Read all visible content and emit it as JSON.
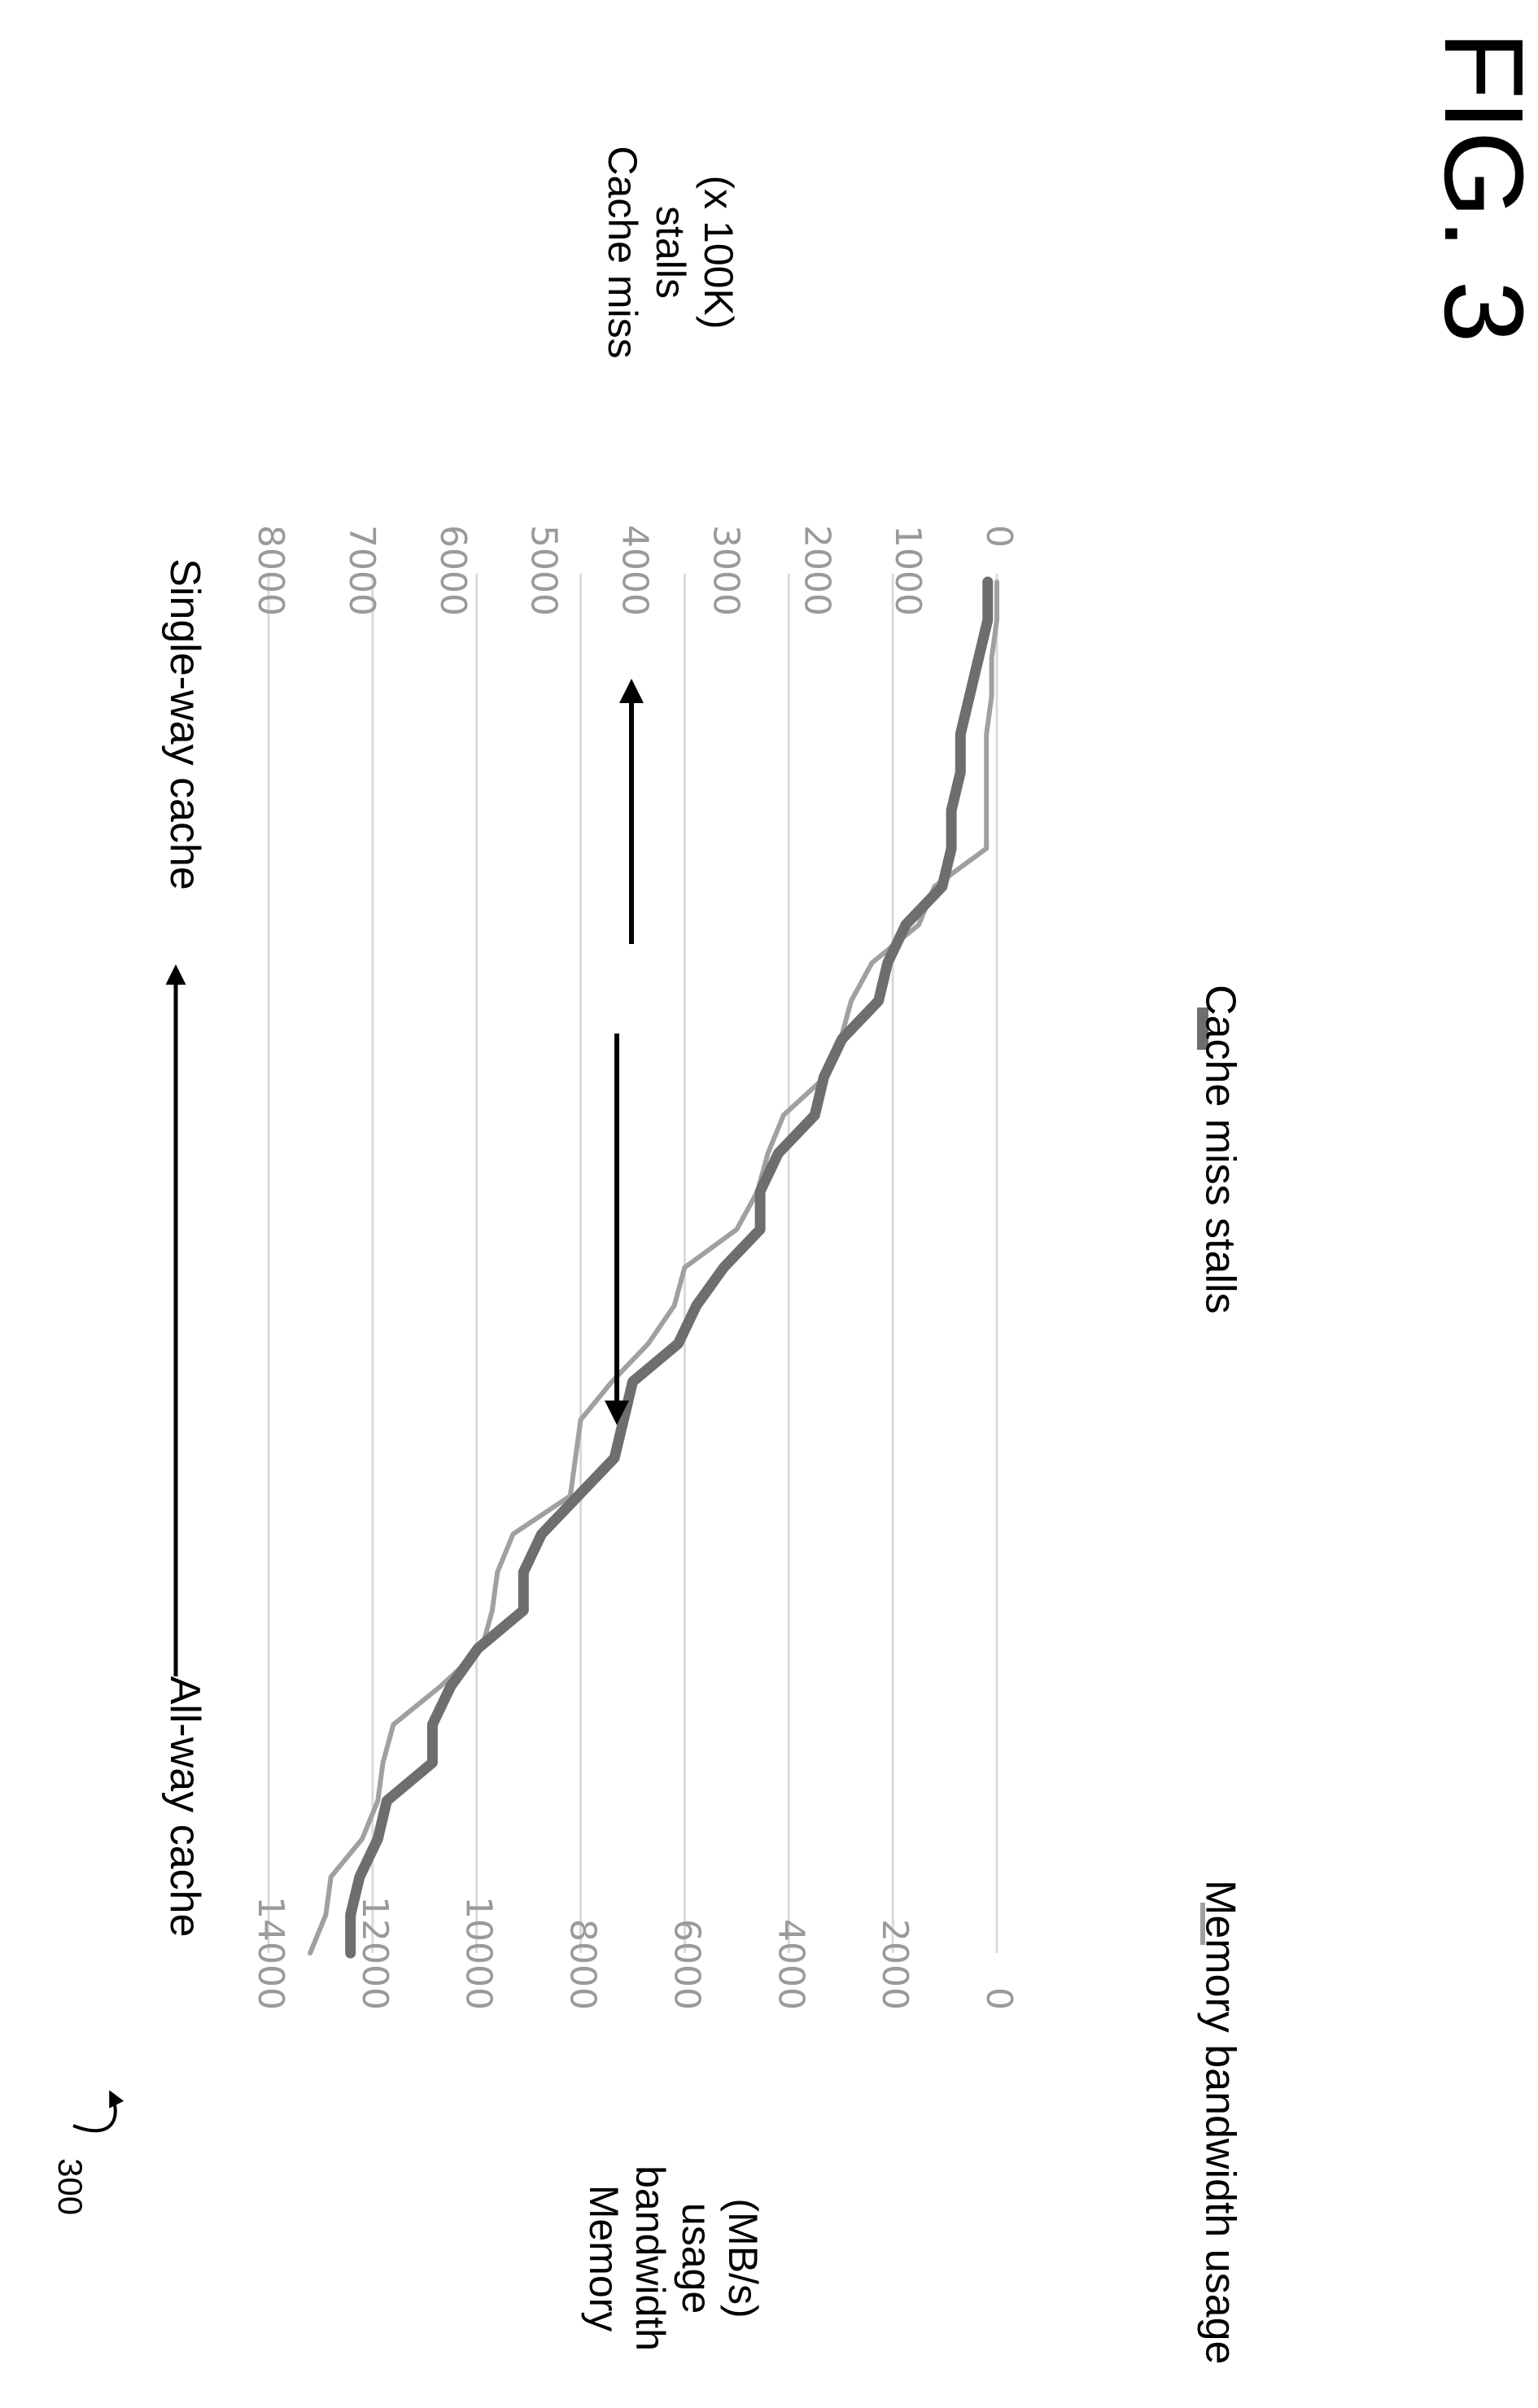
{
  "figure": {
    "ref_number": "300",
    "fig_label": "FIG. 3"
  },
  "annotations": {
    "left_end": "All-way cache",
    "right_end": "Single-way cache"
  },
  "chart_data": {
    "type": "line",
    "orientation": "rotated 90° clockwise (x runs top to bottom of page)",
    "grid": true,
    "legend_position": "bottom",
    "primary_axis": {
      "label": [
        "Memory",
        "bandwidth",
        "usage",
        "(MB/s)"
      ],
      "ylim": [
        0,
        14000
      ],
      "ticks": [
        "0",
        "2000",
        "4000",
        "6000",
        "8000",
        "10000",
        "12000",
        "14000"
      ]
    },
    "secondary_axis": {
      "label": [
        "Cache miss",
        "stalls",
        "(x 100K)"
      ],
      "ylim": [
        0,
        8000
      ],
      "ticks": [
        "0",
        "1000",
        "2000",
        "3000",
        "4000",
        "5000",
        "6000",
        "7000",
        "8000"
      ]
    },
    "x": [
      0,
      1,
      2,
      3,
      4,
      5,
      6,
      7,
      8,
      9,
      10,
      11,
      12,
      13,
      14,
      15,
      16,
      17,
      18,
      19,
      20,
      21,
      22,
      23,
      24,
      25,
      26,
      27,
      28,
      29,
      30,
      31,
      32,
      33,
      34,
      35,
      36
    ],
    "series": [
      {
        "name": "Memory bandwidth usage",
        "axis": "primary",
        "color": "#a0a0a0",
        "values": [
          0,
          0,
          100,
          100,
          200,
          200,
          200,
          200,
          1200,
          1500,
          2400,
          2800,
          3000,
          3300,
          4100,
          4400,
          4600,
          5000,
          6000,
          6200,
          6700,
          7400,
          8000,
          8100,
          8200,
          9300,
          9600,
          9700,
          9900,
          10700,
          11600,
          11800,
          11900,
          12200,
          12800,
          12900,
          13200
        ]
      },
      {
        "name": "Cache miss stalls",
        "axis": "secondary",
        "color": "#6e6e6e",
        "values": [
          100,
          100,
          200,
          300,
          400,
          400,
          500,
          500,
          600,
          1000,
          1200,
          1300,
          1700,
          1900,
          2000,
          2400,
          2600,
          2600,
          3000,
          3300,
          3500,
          4000,
          4100,
          4200,
          4600,
          5000,
          5200,
          5200,
          5700,
          6000,
          6200,
          6200,
          6700,
          6800,
          7000,
          7100,
          7100
        ]
      }
    ]
  }
}
